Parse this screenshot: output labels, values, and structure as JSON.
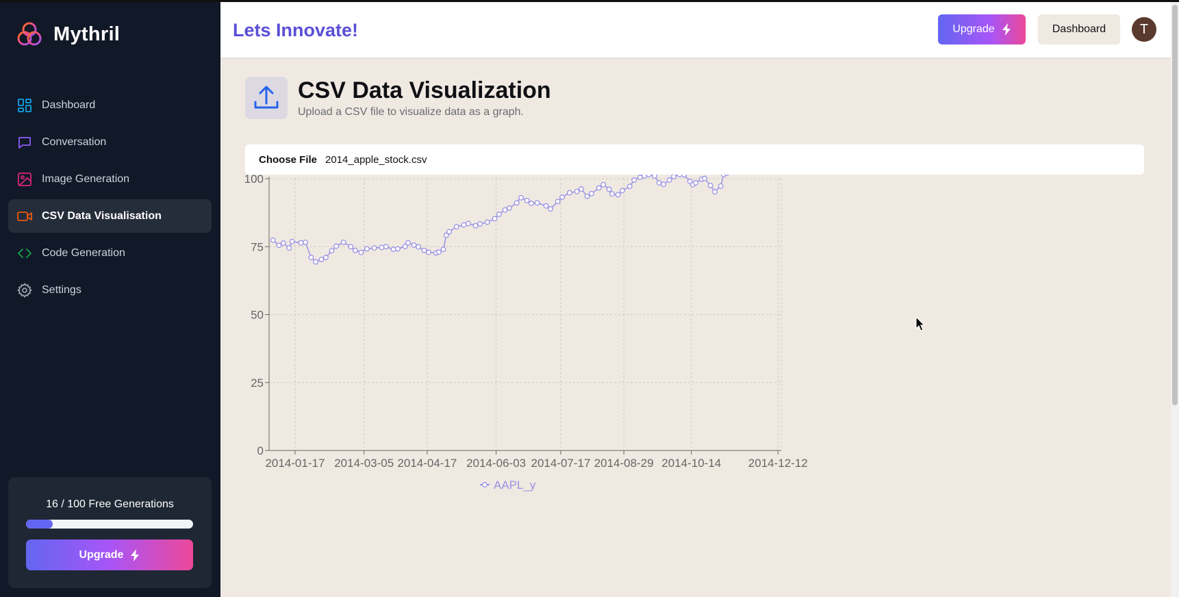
{
  "sidebar": {
    "logo_text": "Mythril",
    "items": [
      {
        "label": "Dashboard",
        "icon": "dashboard-icon",
        "color": "#0ea5e9"
      },
      {
        "label": "Conversation",
        "icon": "message-icon",
        "color": "#8b5cf6"
      },
      {
        "label": "Image Generation",
        "icon": "image-icon",
        "color": "#db2777"
      },
      {
        "label": "CSV Data Visualisation",
        "icon": "video-icon",
        "color": "#ea580c"
      },
      {
        "label": "Code Generation",
        "icon": "code-icon",
        "color": "#16a34a"
      },
      {
        "label": "Settings",
        "icon": "gear-icon",
        "color": "#9ca3af"
      }
    ],
    "active_index": 3,
    "generations": {
      "text": "16 / 100 Free Generations",
      "used": 16,
      "total": 100
    },
    "upgrade_label": "Upgrade"
  },
  "header": {
    "brand": "Lets Innovate!",
    "upgrade_label": "Upgrade",
    "dashboard_label": "Dashboard",
    "avatar_initial": "T"
  },
  "page": {
    "title": "CSV Data Visualization",
    "subtitle": "Upload a CSV file to visualize data as a graph.",
    "file_button": "Choose File",
    "file_name": "2014_apple_stock.csv"
  },
  "colors": {
    "accent": "#5b4fd6",
    "series": "#9891e3",
    "sidebar_bg": "#111827",
    "main_bg": "#f0e9e2"
  },
  "chart_data": {
    "type": "line",
    "x_ticks": [
      "2014-01-17",
      "2014-03-05",
      "2014-04-17",
      "2014-06-03",
      "2014-07-17",
      "2014-08-29",
      "2014-10-14",
      "2014-12-12"
    ],
    "y_ticks": [
      0,
      25,
      50,
      75,
      100
    ],
    "ylim": [
      0,
      100
    ],
    "grid": true,
    "legend": "bottom",
    "series": [
      {
        "name": "AAPL_y",
        "points": [
          [
            "2014-01-02",
            77.4
          ],
          [
            "2014-01-06",
            75.5
          ],
          [
            "2014-01-09",
            76.3
          ],
          [
            "2014-01-13",
            74.5
          ],
          [
            "2014-01-15",
            76.9
          ],
          [
            "2014-01-21",
            76.4
          ],
          [
            "2014-01-24",
            76.6
          ],
          [
            "2014-01-28",
            71.0
          ],
          [
            "2014-01-31",
            69.4
          ],
          [
            "2014-02-04",
            70.3
          ],
          [
            "2014-02-07",
            71.0
          ],
          [
            "2014-02-11",
            73.5
          ],
          [
            "2014-02-14",
            75.2
          ],
          [
            "2014-02-19",
            76.6
          ],
          [
            "2014-02-24",
            75.0
          ],
          [
            "2014-02-27",
            73.6
          ],
          [
            "2014-03-03",
            72.9
          ],
          [
            "2014-03-07",
            74.2
          ],
          [
            "2014-03-12",
            74.5
          ],
          [
            "2014-03-17",
            74.7
          ],
          [
            "2014-03-20",
            75.0
          ],
          [
            "2014-03-25",
            74.0
          ],
          [
            "2014-03-28",
            74.2
          ],
          [
            "2014-04-02",
            75.1
          ],
          [
            "2014-04-04",
            76.4
          ],
          [
            "2014-04-08",
            75.6
          ],
          [
            "2014-04-11",
            74.9
          ],
          [
            "2014-04-15",
            73.6
          ],
          [
            "2014-04-18",
            72.9
          ],
          [
            "2014-04-23",
            72.7
          ],
          [
            "2014-04-25",
            73.0
          ],
          [
            "2014-04-28",
            74.0
          ],
          [
            "2014-04-30",
            79.2
          ],
          [
            "2014-05-02",
            80.5
          ],
          [
            "2014-05-07",
            82.3
          ],
          [
            "2014-05-12",
            83.0
          ],
          [
            "2014-05-15",
            83.5
          ],
          [
            "2014-05-20",
            82.7
          ],
          [
            "2014-05-23",
            83.4
          ],
          [
            "2014-05-28",
            84.0
          ],
          [
            "2014-06-02",
            85.3
          ],
          [
            "2014-06-05",
            86.9
          ],
          [
            "2014-06-09",
            88.5
          ],
          [
            "2014-06-12",
            89.2
          ],
          [
            "2014-06-17",
            91.1
          ],
          [
            "2014-06-20",
            93.0
          ],
          [
            "2014-06-24",
            92.0
          ],
          [
            "2014-06-27",
            90.9
          ],
          [
            "2014-07-01",
            91.1
          ],
          [
            "2014-07-07",
            90.0
          ],
          [
            "2014-07-10",
            88.9
          ],
          [
            "2014-07-15",
            91.6
          ],
          [
            "2014-07-18",
            93.2
          ],
          [
            "2014-07-23",
            94.8
          ],
          [
            "2014-07-28",
            95.3
          ],
          [
            "2014-07-31",
            96.2
          ],
          [
            "2014-08-04",
            93.5
          ],
          [
            "2014-08-07",
            94.5
          ],
          [
            "2014-08-12",
            96.6
          ],
          [
            "2014-08-15",
            97.8
          ],
          [
            "2014-08-19",
            96.1
          ],
          [
            "2014-08-21",
            94.4
          ],
          [
            "2014-08-25",
            94.1
          ],
          [
            "2014-08-28",
            95.6
          ],
          [
            "2014-09-02",
            97.2
          ],
          [
            "2014-09-05",
            99.5
          ],
          [
            "2014-09-09",
            100.5
          ],
          [
            "2014-09-12",
            101.0
          ],
          [
            "2014-09-15",
            101.5
          ],
          [
            "2014-09-19",
            101.0
          ],
          [
            "2014-09-22",
            98.5
          ],
          [
            "2014-09-25",
            97.9
          ],
          [
            "2014-09-29",
            99.5
          ],
          [
            "2014-10-02",
            100.8
          ],
          [
            "2014-10-06",
            101.5
          ],
          [
            "2014-10-09",
            101.4
          ],
          [
            "2014-10-13",
            99.0
          ],
          [
            "2014-10-15",
            97.8
          ],
          [
            "2014-10-17",
            98.5
          ],
          [
            "2014-10-21",
            99.8
          ],
          [
            "2014-10-23",
            100.1
          ],
          [
            "2014-10-27",
            97.5
          ],
          [
            "2014-10-30",
            95.2
          ],
          [
            "2014-11-03",
            97.3
          ],
          [
            "2014-11-05",
            101.5
          ],
          [
            "2014-11-07",
            102.0
          ]
        ]
      }
    ]
  }
}
